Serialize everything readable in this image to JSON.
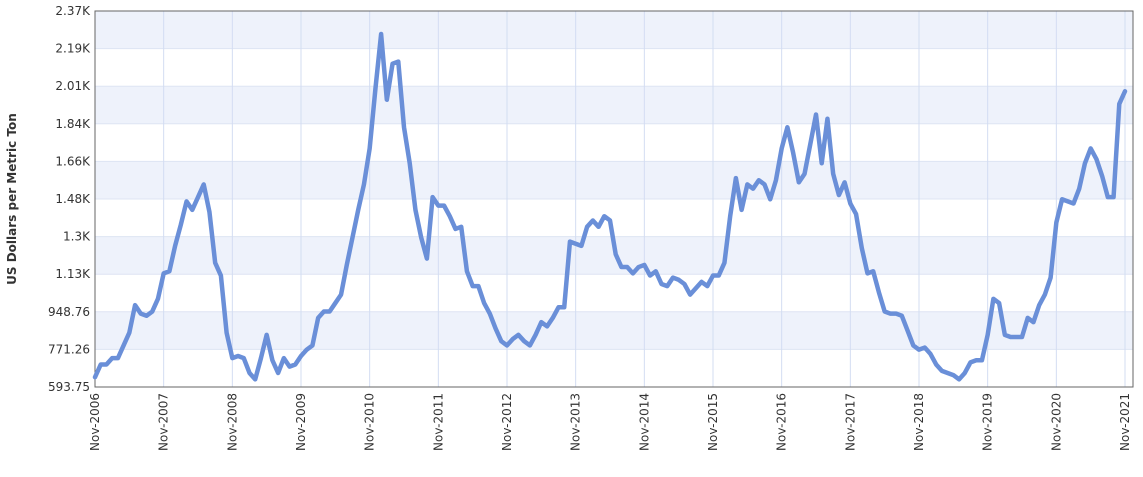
{
  "chart_data": {
    "type": "line",
    "y_label": "US Dollars per Metric Ton",
    "categories": [
      "Nov-2006",
      null,
      null,
      null,
      null,
      null,
      null,
      null,
      null,
      null,
      null,
      null,
      "Nov-2007",
      null,
      null,
      null,
      null,
      null,
      null,
      null,
      null,
      null,
      null,
      null,
      "Nov-2008",
      null,
      null,
      null,
      null,
      null,
      null,
      null,
      null,
      null,
      null,
      null,
      "Nov-2009",
      null,
      null,
      null,
      null,
      null,
      null,
      null,
      null,
      null,
      null,
      null,
      "Nov-2010",
      null,
      null,
      null,
      null,
      null,
      null,
      null,
      null,
      null,
      null,
      null,
      "Nov-2011",
      null,
      null,
      null,
      null,
      null,
      null,
      null,
      null,
      null,
      null,
      null,
      "Nov-2012",
      null,
      null,
      null,
      null,
      null,
      null,
      null,
      null,
      null,
      null,
      null,
      "Nov-2013",
      null,
      null,
      null,
      null,
      null,
      null,
      null,
      null,
      null,
      null,
      null,
      "Nov-2014",
      null,
      null,
      null,
      null,
      null,
      null,
      null,
      null,
      null,
      null,
      null,
      "Nov-2015",
      null,
      null,
      null,
      null,
      null,
      null,
      null,
      null,
      null,
      null,
      null,
      "Nov-2016",
      null,
      null,
      null,
      null,
      null,
      null,
      null,
      null,
      null,
      null,
      null,
      "Nov-2017",
      null,
      null,
      null,
      null,
      null,
      null,
      null,
      null,
      null,
      null,
      null,
      "Nov-2018",
      null,
      null,
      null,
      null,
      null,
      null,
      null,
      null,
      null,
      null,
      null,
      "Nov-2019",
      null,
      null,
      null,
      null,
      null,
      null,
      null,
      null,
      null,
      null,
      null,
      "Nov-2020",
      null,
      null,
      null,
      null,
      null,
      null,
      null,
      null,
      null,
      null,
      null,
      "Nov-2021"
    ],
    "values": [
      640,
      700,
      700,
      730,
      730,
      790,
      850,
      980,
      940,
      930,
      950,
      1010,
      1130,
      1140,
      1260,
      1360,
      1470,
      1430,
      1490,
      1550,
      1420,
      1180,
      1120,
      850,
      730,
      740,
      730,
      660,
      630,
      730,
      840,
      720,
      660,
      730,
      690,
      700,
      740,
      770,
      790,
      920,
      950,
      950,
      990,
      1030,
      1170,
      1300,
      1430,
      1550,
      1720,
      2000,
      2260,
      1950,
      2120,
      2130,
      1820,
      1650,
      1430,
      1300,
      1200,
      1490,
      1450,
      1450,
      1400,
      1340,
      1350,
      1140,
      1070,
      1070,
      990,
      940,
      870,
      810,
      790,
      820,
      840,
      810,
      790,
      840,
      900,
      880,
      920,
      970,
      970,
      1280,
      1270,
      1260,
      1350,
      1380,
      1350,
      1400,
      1380,
      1220,
      1160,
      1160,
      1130,
      1160,
      1170,
      1120,
      1140,
      1080,
      1070,
      1110,
      1100,
      1080,
      1030,
      1060,
      1090,
      1070,
      1120,
      1120,
      1180,
      1400,
      1580,
      1430,
      1550,
      1530,
      1570,
      1550,
      1480,
      1570,
      1720,
      1820,
      1700,
      1560,
      1600,
      1740,
      1880,
      1650,
      1860,
      1600,
      1500,
      1560,
      1460,
      1410,
      1250,
      1130,
      1140,
      1040,
      950,
      940,
      940,
      930,
      860,
      790,
      770,
      780,
      750,
      700,
      670,
      660,
      650,
      630,
      660,
      710,
      720,
      720,
      840,
      1010,
      990,
      840,
      830,
      830,
      830,
      920,
      900,
      980,
      1030,
      1110,
      1370,
      1480,
      1470,
      1460,
      1530,
      1650,
      1720,
      1670,
      1590,
      1490,
      1490,
      1930,
      1990
    ],
    "color": "#6a8fd8",
    "ylim": [
      593.75,
      2368.8
    ],
    "yticks": [
      593.75,
      771.26,
      948.76,
      {
        "value": 1126.27,
        "label": "1.13K"
      },
      {
        "value": 1303.77,
        "label": "1.3K"
      },
      {
        "value": 1481.28,
        "label": "1.48K"
      },
      {
        "value": 1658.78,
        "label": "1.66K"
      },
      {
        "value": 1836.29,
        "label": "1.84K"
      },
      {
        "value": 2013.79,
        "label": "2.01K"
      },
      {
        "value": 2191.3,
        "label": "2.19K"
      },
      {
        "value": 2368.8,
        "label": "2.37K"
      }
    ],
    "grid": true
  }
}
